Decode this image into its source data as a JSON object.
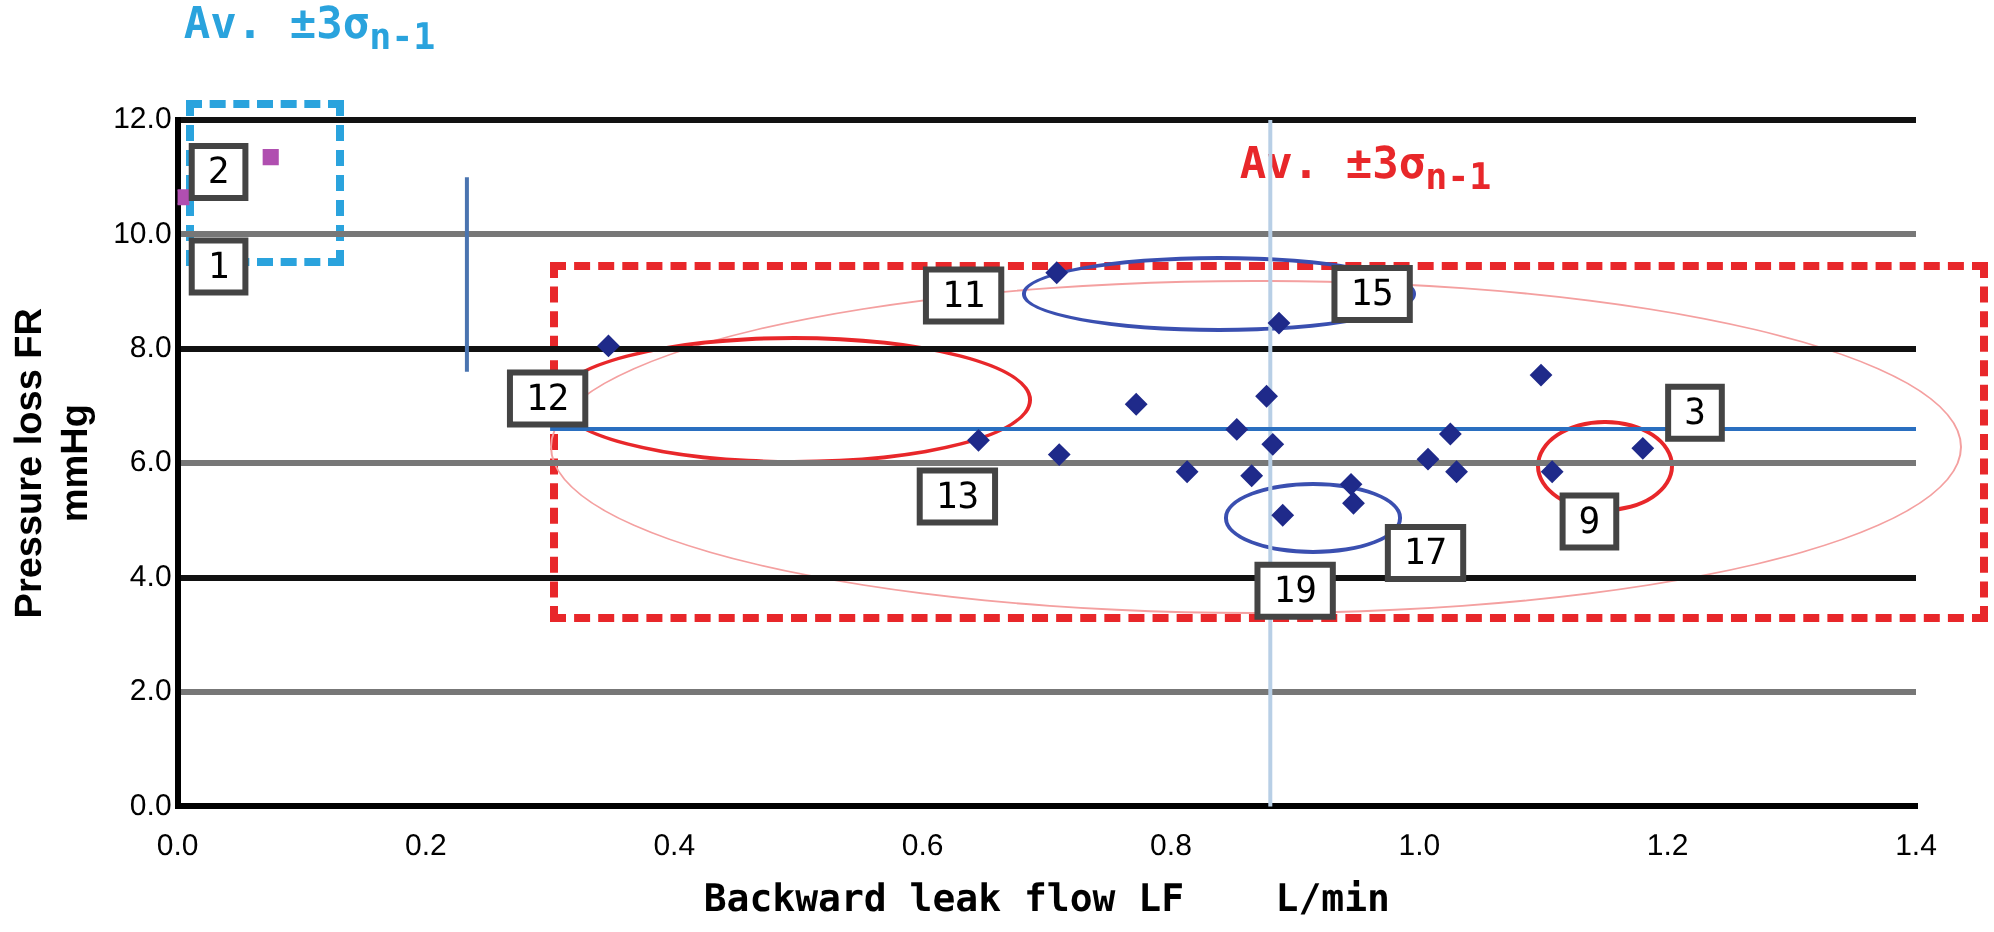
{
  "chart_data": {
    "type": "scatter",
    "xlabel": "Backward leak flow LF    L/min",
    "ylabel": "Pressure loss FR\nmmHg",
    "xlim": [
      0,
      1.4
    ],
    "xticks": [
      {
        "value": 0,
        "label": "0.0"
      },
      {
        "value": 0.2,
        "label": "0.2"
      },
      {
        "value": 0.4,
        "label": "0.4"
      },
      {
        "value": 0.6,
        "label": "0.6"
      },
      {
        "value": 0.8,
        "label": "0.8"
      },
      {
        "value": 1,
        "label": "1.0"
      },
      {
        "value": 1.2,
        "label": "1.2"
      },
      {
        "value": 1.4,
        "label": "1.4"
      }
    ],
    "ylim": [
      0,
      12
    ],
    "yticks": [
      {
        "value": 0,
        "label": "0.0"
      },
      {
        "value": 2,
        "label": "2.0"
      },
      {
        "value": 4,
        "label": "4.0"
      },
      {
        "value": 6,
        "label": "6.0"
      },
      {
        "value": 8,
        "label": "8.0"
      },
      {
        "value": 10,
        "label": "10.0"
      },
      {
        "value": 12,
        "label": "12.0"
      }
    ],
    "grid": "y",
    "legend": false,
    "marker": "diamond",
    "series": [
      {
        "color": "#1f2a8a",
        "x": [
          0.347,
          0.708,
          0.887,
          0.772,
          0.877,
          1.098,
          0.645,
          0.71,
          0.853,
          0.882,
          1.025,
          0.813,
          0.865,
          1.007,
          1.03,
          1.18,
          1.107,
          0.945,
          0.947,
          0.89
        ],
        "values": [
          8.05,
          9.33,
          8.45,
          7.03,
          7.17,
          7.54,
          6.4,
          6.15,
          6.59,
          6.33,
          6.51,
          5.85,
          5.78,
          6.07,
          5.85,
          6.26,
          5.85,
          5.63,
          5.3,
          5.09
        ]
      },
      {
        "color": "#b04fb0",
        "marker": "square",
        "x": [
          0.003,
          0.075
        ],
        "values": [
          10.65,
          11.35
        ]
      },
      {
        "type": "line",
        "marker": "none",
        "color": "#2a6fc0",
        "x": [
          0.3,
          1.4
        ],
        "values": [
          6.6,
          6.6
        ]
      },
      {
        "type": "line",
        "marker": "none",
        "color": "#4a74b0",
        "x": [
          0.233,
          0.233
        ],
        "values": [
          7.6,
          11.0
        ]
      }
    ],
    "ref_lines": [
      {
        "axis": "x",
        "value": 0.88,
        "color": "#b8cfe6"
      }
    ],
    "annotations": [
      "Av. ±3σ$_{n-1}$",
      "Av. ±3σ$_{n-1}$",
      {
        "text": "2",
        "x": 0.033,
        "y": 11.09
      },
      {
        "text": "1",
        "x": 0.033,
        "y": 9.44
      },
      {
        "text": "12",
        "x": 0.298,
        "y": 7.13
      },
      {
        "text": "11",
        "x": 0.633,
        "y": 8.93
      },
      {
        "text": "15",
        "x": 0.962,
        "y": 8.96
      },
      {
        "text": "13",
        "x": 0.628,
        "y": 5.42
      },
      {
        "text": "3",
        "x": 1.222,
        "y": 6.88
      },
      {
        "text": "9",
        "x": 1.137,
        "y": 4.98
      },
      {
        "text": "17",
        "x": 1.005,
        "y": 4.43
      },
      {
        "text": "19",
        "x": 0.9,
        "y": 3.77
      }
    ]
  }
}
